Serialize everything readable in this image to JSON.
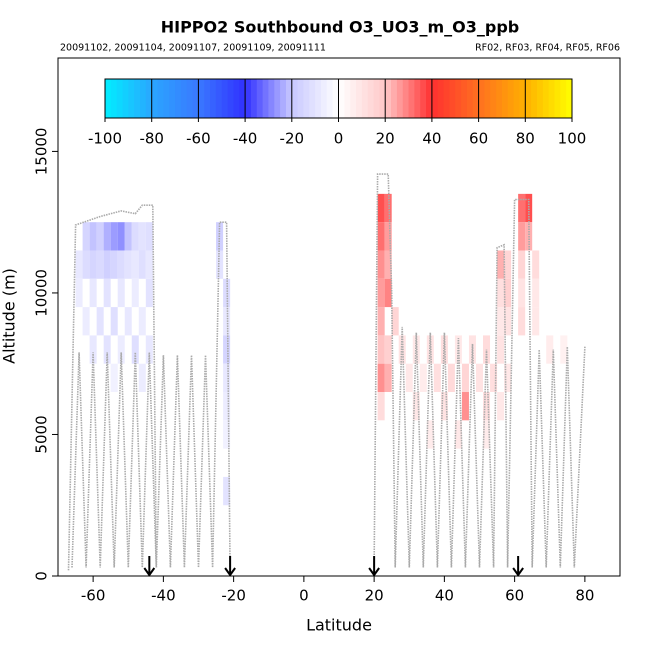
{
  "chart_data": {
    "type": "heatmap",
    "title": "HIPPO2 Southbound O3_UO3_m_O3_ppb",
    "subtitle_left": "20091102, 20091104, 20091107, 20091109, 20091111",
    "subtitle_right": "RF02, RF03, RF04, RF05, RF06",
    "x_label": "Latitude",
    "y_label": "Altitude (m)",
    "xlim": [
      -70,
      90
    ],
    "ylim": [
      0,
      18300
    ],
    "xticks": [
      -60,
      -40,
      -20,
      0,
      20,
      40,
      60,
      80
    ],
    "yticks": [
      0,
      5000,
      10000,
      15000
    ],
    "colorbar": {
      "ticks": [
        -100,
        -80,
        -60,
        -40,
        -20,
        0,
        20,
        40,
        60,
        80,
        100
      ],
      "colors": [
        "#00eeff",
        "#2aa6ff",
        "#3a78ff",
        "#3030ff",
        "#c8c8ff",
        "#ffffff",
        "#ffc8c8",
        "#ff3030",
        "#ff7020",
        "#ffb000",
        "#ffff00"
      ]
    },
    "arrows": [
      -44,
      -21,
      20,
      61
    ],
    "cells": {
      "x": [
        -62,
        -60,
        -58,
        -56,
        -54,
        -52,
        -50,
        -48,
        -46,
        -44,
        -64,
        -62,
        -60,
        -58,
        -56,
        -54,
        -52,
        -50,
        -48,
        -46,
        -44,
        -64,
        -60,
        -56,
        -52,
        -48,
        -44,
        -62,
        -58,
        -54,
        -50,
        -46,
        -60,
        -56,
        -52,
        -48,
        -44,
        -54,
        -46,
        -24,
        -24,
        -22,
        -22,
        -22,
        -22,
        -22,
        -22,
        -22,
        22,
        24,
        22,
        24,
        22,
        24,
        22,
        24,
        22,
        26,
        22,
        24,
        22,
        24,
        22,
        28,
        32,
        36,
        40,
        44,
        48,
        52,
        56,
        30,
        34,
        38,
        42,
        46,
        50,
        54,
        58,
        32,
        40,
        46,
        52,
        56,
        36,
        44,
        52,
        56,
        58,
        56,
        58,
        56,
        58,
        62,
        64,
        62,
        64,
        62,
        66,
        62,
        66,
        62,
        66,
        70,
        74
      ],
      "y": [
        12000,
        12000,
        12000,
        12000,
        12000,
        12000,
        12000,
        12000,
        12000,
        12000,
        11000,
        11000,
        11000,
        11000,
        11000,
        11000,
        11000,
        11000,
        11000,
        11000,
        11000,
        10000,
        10000,
        10000,
        10000,
        10000,
        10000,
        9000,
        9000,
        9000,
        9000,
        9000,
        8000,
        8000,
        8000,
        8000,
        8000,
        7000,
        7000,
        12000,
        11000,
        10000,
        9000,
        8000,
        7000,
        6000,
        5000,
        3000,
        13000,
        13000,
        12000,
        12000,
        11000,
        11000,
        10000,
        10000,
        9000,
        9000,
        8000,
        8000,
        7000,
        7000,
        6000,
        8000,
        8000,
        8000,
        8000,
        8000,
        8000,
        8000,
        8000,
        7000,
        7000,
        7000,
        7000,
        7000,
        7000,
        7000,
        7000,
        6000,
        6000,
        6000,
        6000,
        6000,
        5000,
        5000,
        5000,
        11000,
        11000,
        10000,
        10000,
        9000,
        9000,
        13000,
        13000,
        12000,
        12000,
        11000,
        11000,
        10000,
        10000,
        9000,
        9000,
        8000,
        8000
      ],
      "values": [
        -18,
        -22,
        -20,
        -25,
        -28,
        -30,
        -22,
        -15,
        -12,
        -14,
        -10,
        -15,
        -18,
        -16,
        -20,
        -18,
        -15,
        -12,
        -10,
        -14,
        -10,
        -8,
        -10,
        -12,
        -10,
        -8,
        -12,
        -8,
        -12,
        -14,
        -10,
        -8,
        -10,
        -12,
        -8,
        -14,
        -10,
        -6,
        -8,
        -20,
        -12,
        -15,
        -10,
        -18,
        -10,
        -8,
        -6,
        -12,
        40,
        35,
        35,
        28,
        30,
        25,
        28,
        32,
        25,
        18,
        22,
        20,
        30,
        25,
        15,
        12,
        10,
        12,
        14,
        10,
        12,
        15,
        12,
        10,
        8,
        14,
        16,
        18,
        12,
        14,
        10,
        10,
        12,
        30,
        14,
        10,
        8,
        10,
        8,
        25,
        18,
        14,
        20,
        10,
        12,
        35,
        40,
        28,
        25,
        18,
        15,
        12,
        10,
        15,
        10,
        8,
        6
      ]
    },
    "track": {
      "x": [
        -67,
        -65,
        -58,
        -52,
        -48,
        -46,
        -43,
        -42,
        null,
        -66,
        -64,
        -62,
        -60,
        -58,
        -56,
        -54,
        -52,
        -50,
        -48,
        -46,
        -44,
        -42,
        -40,
        -38,
        -36,
        -34,
        -32,
        -30,
        -28,
        -26,
        -24,
        -22,
        -21,
        null,
        20,
        21,
        24,
        25,
        26,
        28,
        30,
        32,
        34,
        36,
        38,
        40,
        42,
        44,
        46,
        48,
        50,
        52,
        54,
        55,
        57,
        58,
        60,
        64,
        65,
        67,
        69,
        71,
        73,
        75,
        77,
        80
      ],
      "y": [
        200,
        12400,
        12700,
        12900,
        12800,
        13100,
        13100,
        300,
        null,
        300,
        7900,
        300,
        7900,
        300,
        7900,
        300,
        7900,
        300,
        7900,
        300,
        7900,
        300,
        7800,
        300,
        7800,
        300,
        7800,
        300,
        7800,
        300,
        12500,
        12500,
        200,
        null,
        300,
        14200,
        14200,
        10000,
        300,
        8800,
        300,
        8600,
        300,
        8600,
        300,
        8600,
        300,
        8400,
        300,
        8200,
        300,
        8000,
        300,
        11600,
        11700,
        300,
        13300,
        13300,
        300,
        8000,
        300,
        8000,
        300,
        8100,
        300,
        8100
      ]
    }
  }
}
